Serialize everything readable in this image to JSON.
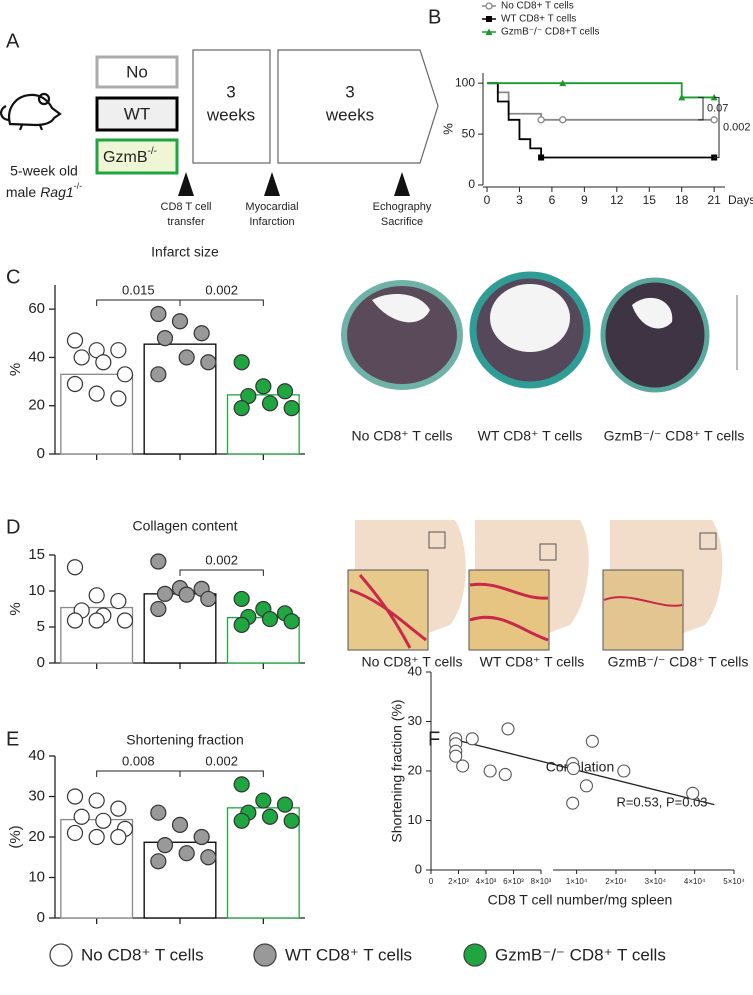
{
  "panel_a": {
    "panel": "A",
    "mouse": [
      "5-week old",
      "male"
    ],
    "strain": "Rag1",
    "strain_sup": "-/-",
    "groups": [
      {
        "text": "No"
      },
      {
        "text": "WT"
      },
      {
        "text": "GzmB",
        "sup": "-/-"
      }
    ],
    "phases": [
      [
        "3",
        "weeks"
      ],
      [
        "3",
        "weeks"
      ]
    ],
    "events": [
      [
        "CD8 T cell",
        "transfer"
      ],
      [
        "Myocardial",
        "Infarction"
      ],
      [
        "Echography",
        "Sacrifice"
      ]
    ]
  },
  "legend": [
    {
      "name": "No CD8⁺ T cells",
      "color": "#ffffff"
    },
    {
      "name": "WT CD8⁺ T cells",
      "color": "#999999"
    },
    {
      "name": "GzmB⁻/⁻ CD8⁺ T cells",
      "color": "#1fa640"
    }
  ],
  "chart_data": [
    {
      "panel": "B",
      "type": "line",
      "step": "post",
      "x": [
        0,
        1,
        2,
        3,
        4,
        5,
        7,
        18,
        21
      ],
      "series": [
        {
          "name": "No CD8+ T cells",
          "color": "#888888",
          "marker": "circle",
          "values": [
            100,
            91,
            70,
            70,
            70,
            64,
            64,
            64,
            64
          ],
          "censored": [
            5,
            7,
            21
          ]
        },
        {
          "name": "WT CD8+ T cells",
          "color": "#000000",
          "marker": "square",
          "values": [
            100,
            82,
            64,
            45,
            36,
            27,
            27,
            27,
            27
          ],
          "censored": [
            5,
            21
          ]
        },
        {
          "name": "GzmB⁻/⁻ CD8+T cells",
          "color": "#1a9a2a",
          "marker": "triangle",
          "values": [
            100,
            100,
            100,
            100,
            100,
            100,
            100,
            86,
            86
          ],
          "censored": [
            7,
            18,
            21
          ]
        }
      ],
      "xlabel": "Days",
      "ylabel": "%",
      "xlim": [
        0,
        22
      ],
      "ylim": [
        0,
        110
      ],
      "xticks": [
        0,
        3,
        6,
        9,
        12,
        15,
        18,
        21
      ],
      "yticks": [
        0,
        50,
        100
      ],
      "legend": "top",
      "comparisons": [
        {
          "series": [
            2,
            0
          ],
          "label": "0.07"
        },
        {
          "series": [
            2,
            1
          ],
          "label": "0.002"
        }
      ]
    },
    {
      "panel": "C",
      "type": "bar",
      "title": "Infarct size",
      "ylabel": "%",
      "categories": [
        null,
        null,
        null
      ],
      "values": [
        33,
        45.5,
        24.5
      ],
      "points": [
        [
          47,
          43,
          43,
          40,
          38,
          33,
          29,
          25,
          23
        ],
        [
          58,
          55,
          50,
          48,
          40,
          38,
          33
        ],
        [
          38,
          28,
          26,
          24,
          21,
          19,
          19
        ]
      ],
      "colors": [
        "#ffffff",
        "#999999",
        "#1fa640"
      ],
      "edge_colors": [
        "#888888",
        "#000000",
        "#1fa640"
      ],
      "ylim": [
        0,
        70
      ],
      "yticks": [
        0,
        20,
        40,
        60
      ],
      "comparisons": [
        {
          "groups": [
            0,
            1
          ],
          "label": "0.015"
        },
        {
          "groups": [
            1,
            2
          ],
          "label": "0.002"
        }
      ]
    },
    {
      "panel": "D",
      "type": "bar",
      "title": "Collagen content",
      "ylabel": "%",
      "categories": [
        null,
        null,
        null
      ],
      "values": [
        7.7,
        9.6,
        6.3
      ],
      "points": [
        [
          13.3,
          9.4,
          8.6,
          7.3,
          6.6,
          5.9,
          5.9,
          5.9
        ],
        [
          14.1,
          10.4,
          10.3,
          9.6,
          9.5,
          8.9,
          7.5
        ],
        [
          8.9,
          7.5,
          6.9,
          6.4,
          6.1,
          5.8,
          5.3
        ]
      ],
      "colors": [
        "#ffffff",
        "#999999",
        "#1fa640"
      ],
      "edge_colors": [
        "#888888",
        "#000000",
        "#1fa640"
      ],
      "ylim": [
        0,
        15
      ],
      "yticks": [
        0,
        5,
        10,
        15
      ],
      "comparisons": [
        {
          "groups": [
            1,
            2
          ],
          "label": "0.002"
        }
      ]
    },
    {
      "panel": "E",
      "type": "bar",
      "title": "Shortening fraction",
      "ylabel": "(%)",
      "categories": [
        null,
        null,
        null
      ],
      "values": [
        24.3,
        18.7,
        27.2
      ],
      "points": [
        [
          30,
          29,
          27,
          25,
          24,
          22,
          21,
          20,
          20
        ],
        [
          26,
          23,
          20,
          18,
          16,
          15,
          14
        ],
        [
          33,
          29,
          28,
          26,
          25,
          24,
          24
        ]
      ],
      "colors": [
        "#ffffff",
        "#999999",
        "#1fa640"
      ],
      "edge_colors": [
        "#888888",
        "#000000",
        "#1fa640"
      ],
      "ylim": [
        0,
        40
      ],
      "yticks": [
        0,
        10,
        20,
        30,
        40
      ],
      "comparisons": [
        {
          "groups": [
            0,
            1
          ],
          "label": "0.008"
        },
        {
          "groups": [
            1,
            2
          ],
          "label": "0.002"
        }
      ]
    },
    {
      "panel": "F",
      "type": "scatter",
      "title": "Correlation",
      "annotation": "R=0.53, P=0.03",
      "xlabel": "CD8 T cell number/mg spleen",
      "ylabel": "Shortening fraction (%)",
      "x": [
        1800,
        1800,
        1800,
        1800,
        2300,
        3000,
        4300,
        5400,
        5600,
        9000,
        9000,
        9200,
        12500,
        14000,
        22000,
        39500
      ],
      "values": [
        26.5,
        25.5,
        24,
        23,
        21,
        26.5,
        20,
        19.3,
        28.5,
        21.5,
        13.5,
        20.5,
        17,
        26,
        20,
        15.5
      ],
      "color": "#ffffff",
      "x_segments": [
        {
          "xlim": [
            0,
            8000
          ],
          "xticks": [
            0,
            {
              "value": 2000,
              "label": "2×10³"
            },
            {
              "value": 4000,
              "label": "4×10³"
            },
            {
              "value": 6000,
              "label": "6×10³"
            },
            {
              "value": 8000,
              "label": "8×10³"
            }
          ]
        },
        {
          "xlim": [
            4000,
            50000
          ],
          "xticks": [
            {
              "value": 10000,
              "label": "1×10⁴"
            },
            {
              "value": 20000,
              "label": "2×10⁴"
            },
            {
              "value": 30000,
              "label": "3×10⁴"
            },
            {
              "value": 40000,
              "label": "4×10⁴"
            },
            {
              "value": 50000,
              "label": "5×10⁴"
            }
          ]
        }
      ],
      "ylim": [
        0,
        40
      ],
      "yticks": [
        0,
        10,
        20,
        30,
        40
      ],
      "fit": {
        "x": [
          1500,
          45000
        ],
        "y": [
          26.5,
          13.2
        ]
      }
    }
  ]
}
